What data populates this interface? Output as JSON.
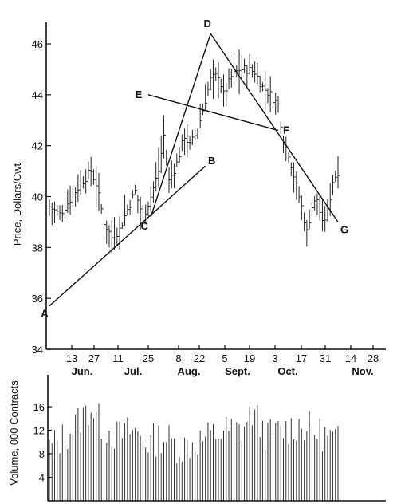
{
  "chart_data": [
    {
      "type": "bar",
      "subtype": "high-low-close",
      "ylabel": "Price, Dollars/Cwt",
      "ylim": [
        34,
        46
      ],
      "y_ticks": [
        34,
        36,
        38,
        40,
        42,
        44,
        46
      ],
      "x_day_ticks": [
        "13",
        "27",
        "11",
        "25",
        "8",
        "22",
        "5",
        "19",
        "3",
        "17",
        "31",
        "14",
        "28"
      ],
      "x_month_labels": [
        "Jun.",
        "Jul.",
        "Aug.",
        "Sept.",
        "Oct.",
        "Nov."
      ],
      "price_path": [
        {
          "i": 0,
          "y": 39.6
        },
        {
          "i": 4,
          "y": 39.3
        },
        {
          "i": 8,
          "y": 39.9
        },
        {
          "i": 12,
          "y": 40.5
        },
        {
          "i": 16,
          "y": 41.0
        },
        {
          "i": 18,
          "y": 40.5
        },
        {
          "i": 21,
          "y": 39.0
        },
        {
          "i": 24,
          "y": 38.4
        },
        {
          "i": 27,
          "y": 38.7
        },
        {
          "i": 30,
          "y": 39.5
        },
        {
          "i": 33,
          "y": 40.2
        },
        {
          "i": 36,
          "y": 39.2
        },
        {
          "i": 39,
          "y": 40.0
        },
        {
          "i": 42,
          "y": 41.0
        },
        {
          "i": 44,
          "y": 42.4
        },
        {
          "i": 46,
          "y": 40.6
        },
        {
          "i": 49,
          "y": 41.3
        },
        {
          "i": 52,
          "y": 42.4
        },
        {
          "i": 54,
          "y": 42.0
        },
        {
          "i": 57,
          "y": 42.6
        },
        {
          "i": 60,
          "y": 43.8
        },
        {
          "i": 62,
          "y": 44.6
        },
        {
          "i": 65,
          "y": 44.8
        },
        {
          "i": 67,
          "y": 44.0
        },
        {
          "i": 70,
          "y": 44.7
        },
        {
          "i": 73,
          "y": 45.0
        },
        {
          "i": 76,
          "y": 45.0
        },
        {
          "i": 79,
          "y": 44.9
        },
        {
          "i": 82,
          "y": 44.3
        },
        {
          "i": 85,
          "y": 44.0
        },
        {
          "i": 88,
          "y": 43.6
        },
        {
          "i": 90,
          "y": 42.2
        },
        {
          "i": 92,
          "y": 41.7
        },
        {
          "i": 95,
          "y": 40.4
        },
        {
          "i": 97,
          "y": 39.6
        },
        {
          "i": 99,
          "y": 38.6
        },
        {
          "i": 101,
          "y": 39.6
        },
        {
          "i": 103,
          "y": 39.9
        },
        {
          "i": 105,
          "y": 38.9
        },
        {
          "i": 107,
          "y": 39.4
        },
        {
          "i": 109,
          "y": 40.6
        },
        {
          "i": 111,
          "y": 41.0
        }
      ],
      "trend_lines": [
        {
          "from": "A",
          "to": "B"
        },
        {
          "from": "C",
          "to": "D"
        },
        {
          "from": "E",
          "to": "F"
        },
        {
          "from": "D",
          "to": "G"
        }
      ],
      "points": [
        {
          "label": "A",
          "date_index": 0,
          "y": 35.7
        },
        {
          "label": "B",
          "date_index": 60,
          "y": 41.2
        },
        {
          "label": "C",
          "date_index": 39,
          "y": 39.2
        },
        {
          "label": "D",
          "date_index": 62,
          "y": 46.4
        },
        {
          "label": "E",
          "date_index": 38,
          "y": 44.0
        },
        {
          "label": "F",
          "date_index": 88,
          "y": 42.6
        },
        {
          "label": "G",
          "date_index": 111,
          "y": 39.0
        }
      ]
    },
    {
      "type": "bar",
      "ylabel": "Volume, 000 Contracts",
      "ylim": [
        0,
        19
      ],
      "y_ticks": [
        4,
        8,
        12,
        16
      ],
      "volume_path": [
        {
          "i": 0,
          "y": 9
        },
        {
          "i": 6,
          "y": 11
        },
        {
          "i": 12,
          "y": 14
        },
        {
          "i": 16,
          "y": 16
        },
        {
          "i": 20,
          "y": 13
        },
        {
          "i": 26,
          "y": 11
        },
        {
          "i": 32,
          "y": 12
        },
        {
          "i": 38,
          "y": 10
        },
        {
          "i": 44,
          "y": 11
        },
        {
          "i": 50,
          "y": 9
        },
        {
          "i": 56,
          "y": 10
        },
        {
          "i": 62,
          "y": 11
        },
        {
          "i": 68,
          "y": 12
        },
        {
          "i": 74,
          "y": 12
        },
        {
          "i": 78,
          "y": 15
        },
        {
          "i": 84,
          "y": 11
        },
        {
          "i": 90,
          "y": 12
        },
        {
          "i": 96,
          "y": 13
        },
        {
          "i": 102,
          "y": 12
        },
        {
          "i": 111,
          "y": 10
        }
      ]
    }
  ]
}
